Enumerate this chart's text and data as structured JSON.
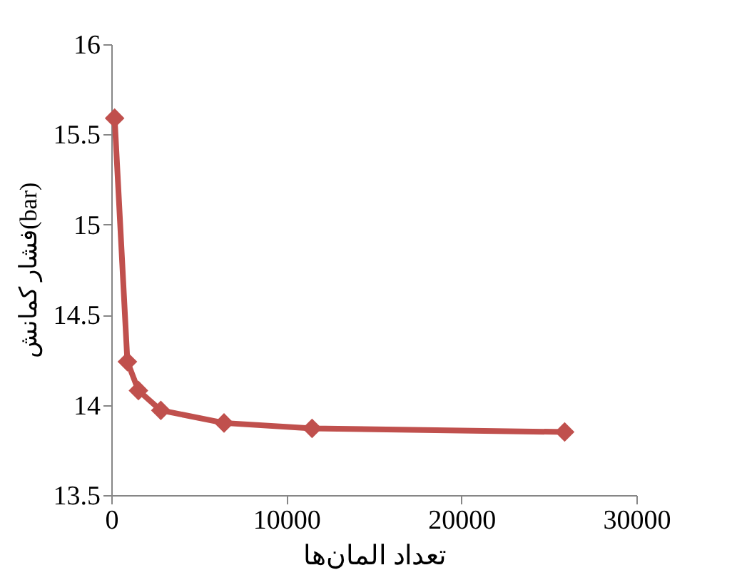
{
  "chart_data": {
    "type": "line",
    "xlabel": "تعداد المان‌ها",
    "ylabel": "فشار کمانش(bar)",
    "x": [
      190,
      920,
      1550,
      2830,
      6440,
      11470,
      25900
    ],
    "series": [
      {
        "color": "#c0504d",
        "values": [
          15.59,
          14.24,
          14.08,
          13.97,
          13.9,
          13.87,
          13.85
        ]
      }
    ],
    "xlim": [
      0,
      30000
    ],
    "xticks": [
      0,
      10000,
      20000,
      30000
    ],
    "ylim": [
      13.5,
      16
    ],
    "yticks": [
      13.5,
      14,
      14.5,
      15,
      15.5,
      16
    ],
    "grid": false,
    "legend": false,
    "marker": "diamond",
    "line_style": "solid"
  }
}
